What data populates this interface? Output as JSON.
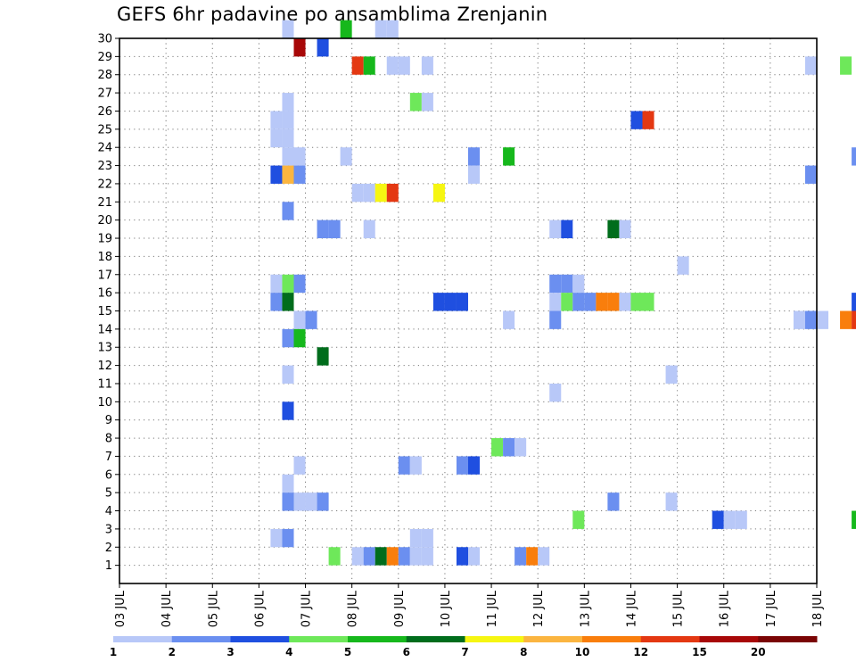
{
  "chart_data": {
    "type": "heatmap",
    "title": "GEFS 6hr padavine po ansamblima Zrenjanin",
    "xlabel": "",
    "ylabel": "",
    "x_start": "2024-07-03 00:00",
    "x_end": "2024-07-18 00:00",
    "x_step_hours": 6,
    "x_tick_labels": [
      "03 JUL",
      "04 JUL",
      "05 JUL",
      "06 JUL",
      "07 JUL",
      "08 JUL",
      "09 JUL",
      "10 JUL",
      "11 JUL",
      "12 JUL",
      "13 JUL",
      "14 JUL",
      "15 JUL",
      "16 JUL",
      "17 JUL",
      "18 JUL"
    ],
    "y_tick_labels": [
      "1",
      "2",
      "3",
      "4",
      "5",
      "6",
      "7",
      "8",
      "9",
      "10",
      "11",
      "12",
      "13",
      "14",
      "15",
      "16",
      "17",
      "18",
      "19",
      "20",
      "21",
      "22",
      "23",
      "24",
      "25",
      "26",
      "27",
      "28",
      "29",
      "30"
    ],
    "ylim": [
      0,
      30
    ],
    "grid": true,
    "legend": {
      "placement": "bottom",
      "levels": [
        "1",
        "2",
        "3",
        "4",
        "5",
        "6",
        "7",
        "8",
        "10",
        "12",
        "15",
        "20"
      ],
      "colors": [
        "#b8c8f8",
        "#6b8ff0",
        "#1f4fe0",
        "#6ee85a",
        "#16b81c",
        "#006d1c",
        "#f6f612",
        "#fbb540",
        "#f97e0c",
        "#e43812",
        "#a80808",
        "#7a0404"
      ]
    },
    "cells": [
      [
        3.5,
        30,
        0
      ],
      [
        4.75,
        30,
        4
      ],
      [
        5.5,
        30,
        0
      ],
      [
        5.75,
        30,
        0
      ],
      [
        3.75,
        29,
        10
      ],
      [
        4.25,
        29,
        2
      ],
      [
        5,
        28,
        9
      ],
      [
        5.25,
        28,
        4
      ],
      [
        5.75,
        28,
        0
      ],
      [
        6,
        28,
        0
      ],
      [
        6.5,
        28,
        0
      ],
      [
        14.75,
        28,
        0
      ],
      [
        15.5,
        28,
        3
      ],
      [
        6.25,
        26,
        3
      ],
      [
        6.5,
        26,
        0
      ],
      [
        3.5,
        26,
        0
      ],
      [
        3.25,
        25,
        0
      ],
      [
        3.5,
        25,
        0
      ],
      [
        11,
        25,
        2
      ],
      [
        11.25,
        25,
        9
      ],
      [
        3.25,
        24,
        0
      ],
      [
        3.5,
        24,
        0
      ],
      [
        3.5,
        23,
        0
      ],
      [
        3.75,
        23,
        0
      ],
      [
        4.75,
        23,
        0
      ],
      [
        7.5,
        23,
        1
      ],
      [
        8.25,
        23,
        4
      ],
      [
        15.75,
        23,
        1
      ],
      [
        3.25,
        22,
        2
      ],
      [
        3.5,
        22,
        7
      ],
      [
        3.75,
        22,
        1
      ],
      [
        7.5,
        22,
        0
      ],
      [
        14.75,
        22,
        1
      ],
      [
        5,
        21,
        0
      ],
      [
        5.25,
        21,
        0
      ],
      [
        5.5,
        21,
        6
      ],
      [
        5.75,
        21,
        9
      ],
      [
        6.75,
        21,
        6
      ],
      [
        3.5,
        20,
        1
      ],
      [
        4.25,
        19,
        1
      ],
      [
        4.5,
        19,
        1
      ],
      [
        5.25,
        19,
        0
      ],
      [
        9.25,
        19,
        0
      ],
      [
        9.5,
        19,
        2
      ],
      [
        10.5,
        19,
        5
      ],
      [
        10.75,
        19,
        0
      ],
      [
        12,
        17,
        0
      ],
      [
        3.25,
        16,
        0
      ],
      [
        3.5,
        16,
        3
      ],
      [
        3.75,
        16,
        1
      ],
      [
        9.25,
        16,
        1
      ],
      [
        9.5,
        16,
        1
      ],
      [
        9.75,
        16,
        0
      ],
      [
        3.25,
        15,
        1
      ],
      [
        3.5,
        15,
        5
      ],
      [
        6.75,
        15,
        2
      ],
      [
        7,
        15,
        2
      ],
      [
        7.25,
        15,
        2
      ],
      [
        9.25,
        15,
        0
      ],
      [
        9.5,
        15,
        3
      ],
      [
        9.75,
        15,
        1
      ],
      [
        10,
        15,
        1
      ],
      [
        10.25,
        15,
        8
      ],
      [
        10.5,
        15,
        8
      ],
      [
        10.75,
        15,
        0
      ],
      [
        11,
        15,
        3
      ],
      [
        11.25,
        15,
        3
      ],
      [
        15.75,
        15,
        2
      ],
      [
        3.75,
        14,
        0
      ],
      [
        4,
        14,
        1
      ],
      [
        8.25,
        14,
        0
      ],
      [
        9.25,
        14,
        1
      ],
      [
        14.5,
        14,
        0
      ],
      [
        14.75,
        14,
        1
      ],
      [
        15,
        14,
        0
      ],
      [
        15.5,
        14,
        8
      ],
      [
        15.75,
        14,
        9
      ],
      [
        3.5,
        13,
        1
      ],
      [
        3.75,
        13,
        4
      ],
      [
        4.25,
        12,
        5
      ],
      [
        3.5,
        11,
        0
      ],
      [
        11.75,
        11,
        0
      ],
      [
        9.25,
        10,
        0
      ],
      [
        3.5,
        9,
        2
      ],
      [
        8,
        7,
        3
      ],
      [
        8.25,
        7,
        1
      ],
      [
        8.5,
        7,
        0
      ],
      [
        3.75,
        6,
        0
      ],
      [
        6,
        6,
        1
      ],
      [
        6.25,
        6,
        0
      ],
      [
        7.25,
        6,
        1
      ],
      [
        7.5,
        6,
        2
      ],
      [
        3.5,
        5,
        0
      ],
      [
        3.5,
        4,
        1
      ],
      [
        3.75,
        4,
        0
      ],
      [
        4,
        4,
        0
      ],
      [
        4.25,
        4,
        1
      ],
      [
        10.5,
        4,
        1
      ],
      [
        11.75,
        4,
        0
      ],
      [
        9.75,
        3,
        3
      ],
      [
        12.75,
        3,
        2
      ],
      [
        13,
        3,
        0
      ],
      [
        13.25,
        3,
        0
      ],
      [
        15.75,
        3,
        4
      ],
      [
        3.25,
        2,
        0
      ],
      [
        3.5,
        2,
        1
      ],
      [
        6.25,
        2,
        0
      ],
      [
        6.5,
        2,
        0
      ],
      [
        4.5,
        1,
        3
      ],
      [
        5,
        1,
        0
      ],
      [
        5.25,
        1,
        1
      ],
      [
        5.5,
        1,
        5
      ],
      [
        5.75,
        1,
        8
      ],
      [
        6,
        1,
        1
      ],
      [
        6.25,
        1,
        0
      ],
      [
        6.5,
        1,
        0
      ],
      [
        7.25,
        1,
        2
      ],
      [
        7.5,
        1,
        0
      ],
      [
        8.5,
        1,
        1
      ],
      [
        8.75,
        1,
        8
      ],
      [
        9,
        1,
        0
      ]
    ]
  }
}
